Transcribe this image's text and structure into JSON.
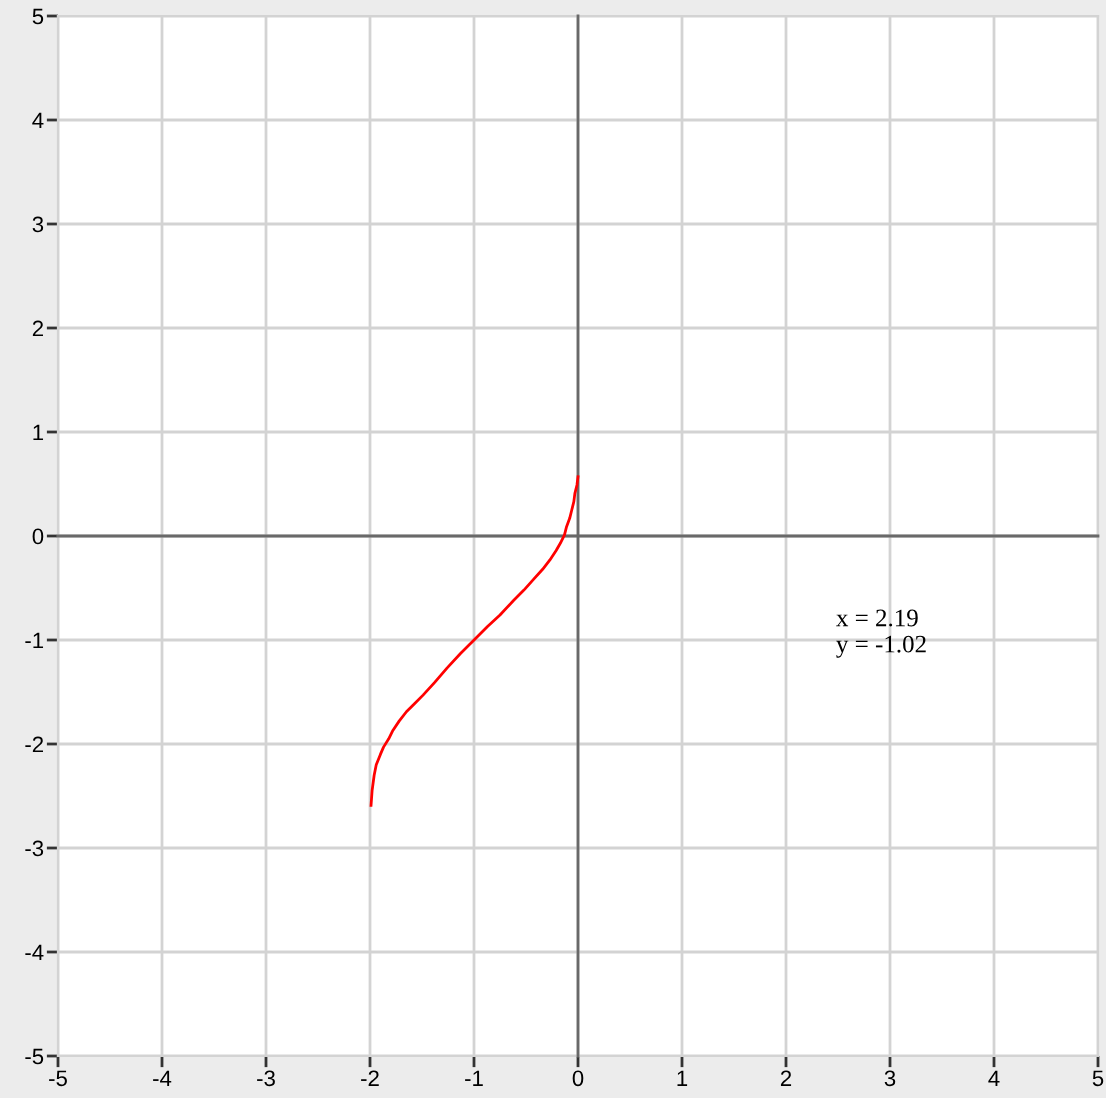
{
  "chart_data": {
    "type": "line",
    "series": [
      {
        "color": "#ff0000",
        "x": [
          -1.99,
          -1.98,
          -1.96,
          -1.94,
          -1.9,
          -1.87,
          -1.82,
          -1.78,
          -1.72,
          -1.65,
          -1.57,
          -1.49,
          -1.38,
          -1.26,
          -1.13,
          -0.99,
          -0.87,
          -0.75,
          -0.62,
          -0.52,
          -0.43,
          -0.34,
          -0.27,
          -0.21,
          -0.17,
          -0.13,
          -0.11,
          -0.08,
          -0.06,
          -0.04,
          -0.03,
          -0.01,
          0.0
        ],
        "values": [
          -2.59,
          -2.45,
          -2.3,
          -2.2,
          -2.1,
          -2.03,
          -1.95,
          -1.87,
          -1.78,
          -1.69,
          -1.61,
          -1.53,
          -1.41,
          -1.27,
          -1.13,
          -0.99,
          -0.87,
          -0.76,
          -0.62,
          -0.52,
          -0.42,
          -0.32,
          -0.23,
          -0.14,
          -0.07,
          0.01,
          0.09,
          0.17,
          0.25,
          0.33,
          0.41,
          0.49,
          0.57
        ]
      }
    ],
    "xlim": [
      -5,
      5
    ],
    "ylim": [
      -5,
      5
    ],
    "xticks": [
      -5,
      -4,
      -3,
      -2,
      -1,
      0,
      1,
      2,
      3,
      4,
      5
    ],
    "yticks": [
      -5,
      -4,
      -3,
      -2,
      -1,
      0,
      1,
      2,
      3,
      4,
      5
    ],
    "grid": true,
    "marker": "none",
    "line_style": "solid",
    "annotations": [
      "x = 2.19\ny = -1.02"
    ]
  }
}
